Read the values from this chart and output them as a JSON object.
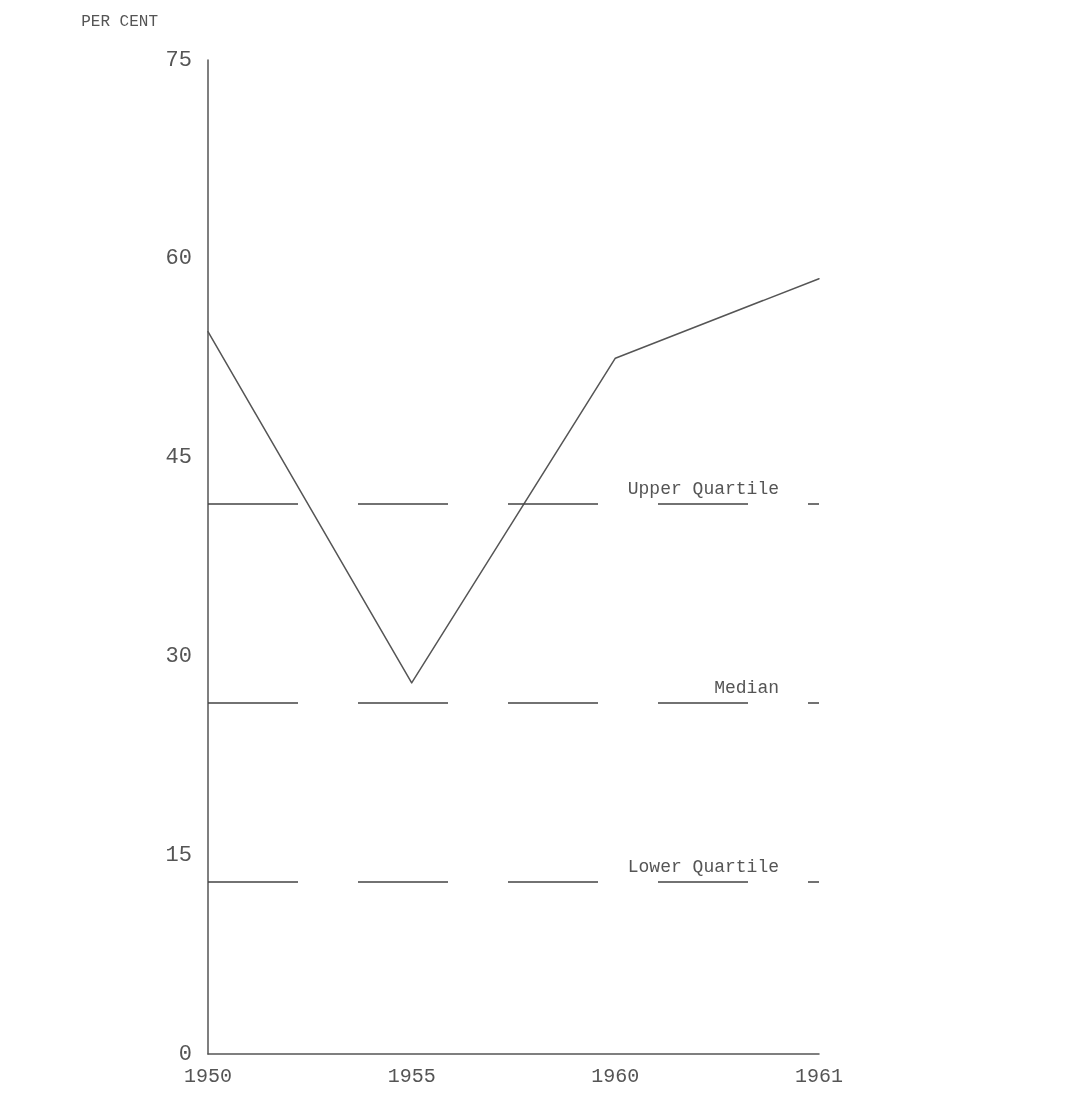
{
  "chart_data": {
    "type": "line",
    "ylabel": "PER CENT",
    "categories": [
      "1950",
      "1955",
      "1960",
      "1961"
    ],
    "series": [
      {
        "color": "#555555",
        "values": [
          54.5,
          28,
          52.5,
          58.5
        ]
      }
    ],
    "ylim": [
      0,
      75
    ],
    "yticks": [
      0,
      15,
      30,
      45,
      60,
      75
    ],
    "grid": false,
    "marker": "none",
    "line_style": "solid",
    "ref_lines": [
      {
        "axis": "y",
        "value": 41.5,
        "label": "Upper Quartile",
        "line_style": "dashed",
        "color": "#444444"
      },
      {
        "axis": "y",
        "value": 26.5,
        "label": "Median",
        "line_style": "dashed",
        "color": "#444444"
      },
      {
        "axis": "y",
        "value": 13,
        "label": "Lower Quartile",
        "line_style": "dashed",
        "color": "#444444"
      }
    ]
  }
}
